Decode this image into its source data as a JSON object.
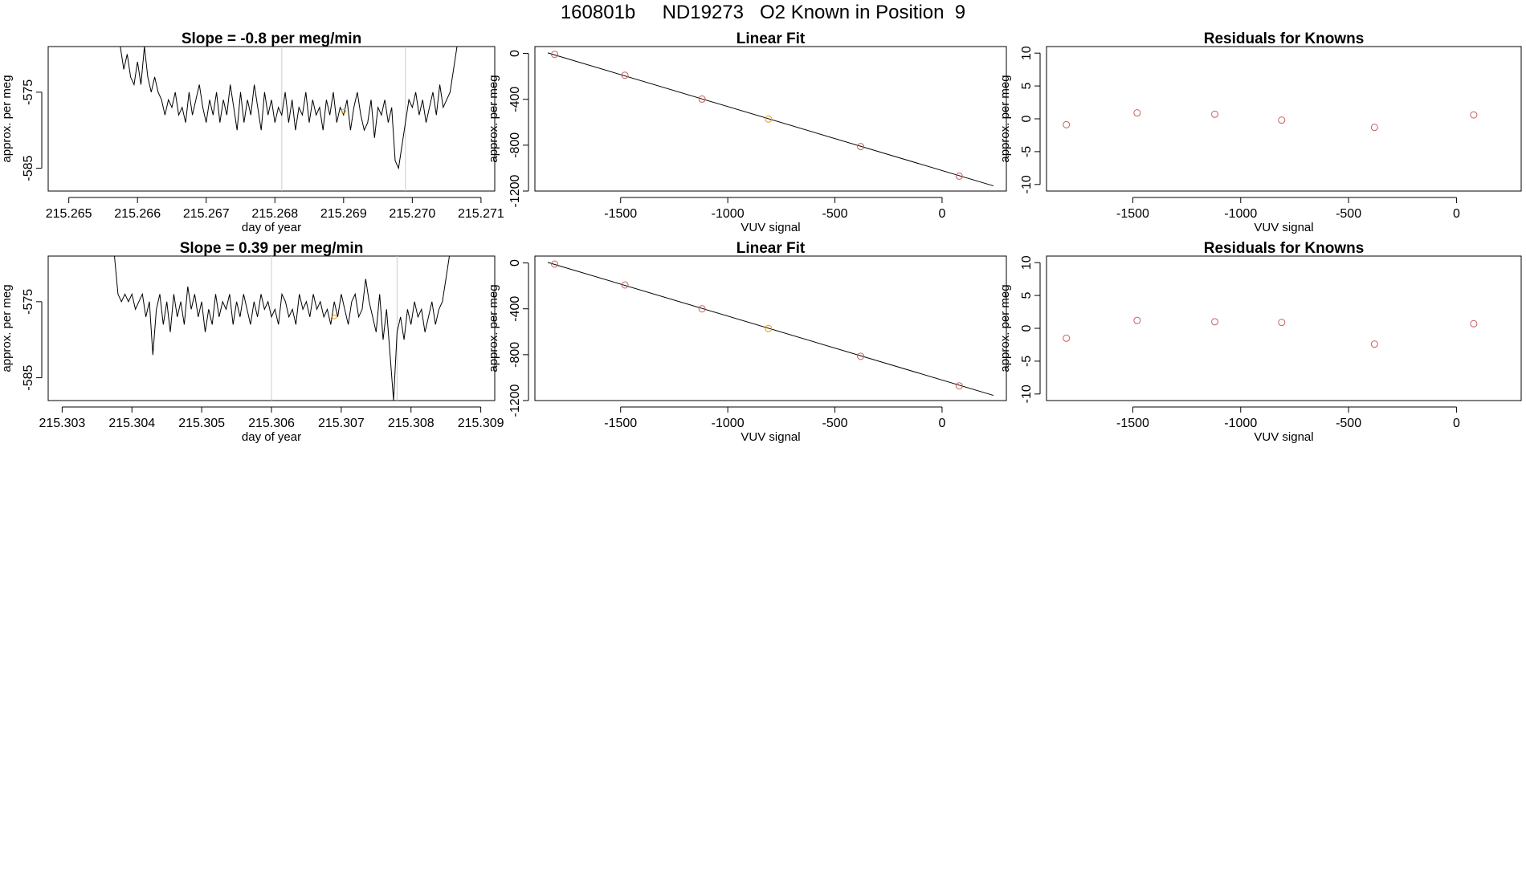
{
  "page_title": "160801b     ND19273   O2 Known in Position  9",
  "chart_data": [
    {
      "type": "line",
      "title": "Slope =  -0.8  per meg/min",
      "xlabel": "day of year",
      "ylabel": "approx. per meg",
      "xlim": [
        215.2647,
        215.2712
      ],
      "ylim": [
        -588,
        -569
      ],
      "xticks": [
        215.265,
        215.266,
        215.267,
        215.268,
        215.269,
        215.27,
        215.271
      ],
      "xtick_labels": [
        "215.265",
        "215.266",
        "215.267",
        "215.268",
        "215.269",
        "215.270",
        "215.271"
      ],
      "yticks": [
        -585,
        -575
      ],
      "ytick_labels": [
        "-585",
        "-575"
      ],
      "vlines": [
        215.2681,
        215.2699
      ],
      "highlight_point": {
        "x": 215.269,
        "y": -577.5
      },
      "line_color": "#000000",
      "vline_color": "#cccccc",
      "highlight_color": "#e69f00",
      "x": [
        215.26575,
        215.2658,
        215.26585,
        215.2659,
        215.26595,
        215.266,
        215.26605,
        215.2661,
        215.26615,
        215.2662,
        215.26625,
        215.2663,
        215.26635,
        215.2664,
        215.26645,
        215.2665,
        215.26655,
        215.2666,
        215.26665,
        215.2667,
        215.26675,
        215.2668,
        215.26685,
        215.2669,
        215.26695,
        215.267,
        215.26705,
        215.2671,
        215.26715,
        215.2672,
        215.26725,
        215.2673,
        215.26735,
        215.2674,
        215.26745,
        215.2675,
        215.26755,
        215.2676,
        215.26765,
        215.2677,
        215.26775,
        215.2678,
        215.26785,
        215.2679,
        215.26795,
        215.268,
        215.26805,
        215.2681,
        215.26815,
        215.2682,
        215.26825,
        215.2683,
        215.26835,
        215.2684,
        215.26845,
        215.2685,
        215.26855,
        215.2686,
        215.26865,
        215.2687,
        215.26875,
        215.2688,
        215.26885,
        215.2689,
        215.26895,
        215.269,
        215.26905,
        215.2691,
        215.26915,
        215.2692,
        215.26925,
        215.2693,
        215.26935,
        215.2694,
        215.26945,
        215.2695,
        215.26955,
        215.2696,
        215.26965,
        215.2697,
        215.26975,
        215.2698,
        215.26985,
        215.2699,
        215.26995,
        215.27,
        215.27005,
        215.2701,
        215.27015,
        215.2702,
        215.27025,
        215.2703,
        215.27035,
        215.2704,
        215.27045,
        215.2705,
        215.27055,
        215.2706,
        215.27065
      ],
      "y": [
        -569,
        -572,
        -570,
        -573,
        -574,
        -571,
        -574,
        -569,
        -573,
        -575,
        -573,
        -575,
        -576,
        -578,
        -576,
        -577,
        -575,
        -578,
        -577,
        -579,
        -575,
        -578,
        -576,
        -574,
        -577,
        -579,
        -576,
        -578,
        -575,
        -579,
        -576,
        -578,
        -574,
        -577,
        -580,
        -575,
        -579,
        -576,
        -578,
        -574,
        -577,
        -580,
        -575,
        -578,
        -576,
        -579,
        -577,
        -578,
        -575,
        -579,
        -576,
        -580,
        -577,
        -578,
        -575,
        -579,
        -576,
        -578,
        -577,
        -580,
        -576,
        -578,
        -575,
        -579,
        -577,
        -578,
        -576,
        -580,
        -577,
        -575,
        -578,
        -580,
        -579,
        -576,
        -581,
        -577,
        -578,
        -576,
        -579,
        -577,
        -584,
        -585,
        -582,
        -579,
        -576,
        -577,
        -575,
        -578,
        -576,
        -579,
        -577,
        -575,
        -578,
        -574,
        -577,
        -576,
        -575,
        -572,
        -569
      ],
      "series_y": "y"
    },
    {
      "type": "scatter",
      "title": "Linear Fit",
      "xlabel": "VUV signal",
      "ylabel": "approx. per meg",
      "xlim": [
        -1900,
        300
      ],
      "ylim": [
        -1200,
        60
      ],
      "xticks": [
        -1500,
        -1000,
        -500,
        0
      ],
      "xtick_labels": [
        "-1500",
        "-1000",
        "-500",
        "0"
      ],
      "yticks": [
        0,
        -400,
        -800,
        -1200
      ],
      "ytick_labels": [
        "0",
        "-400",
        "-800",
        "-1200"
      ],
      "x": [
        -1808,
        -1480,
        -1120,
        -810,
        -380,
        80
      ],
      "y": [
        -8,
        -190,
        -398,
        -572,
        -812,
        -1070
      ],
      "point_colors": [
        "#cd5c5c",
        "#cd5c5c",
        "#cd5c5c",
        "#e69f00",
        "#cd5c5c",
        "#cd5c5c"
      ],
      "fit_line": {
        "x": [
          -1840,
          240
        ],
        "y": [
          5,
          -1155
        ]
      }
    },
    {
      "type": "scatter",
      "title": "Residuals for Knowns",
      "xlabel": "VUV signal",
      "ylabel": "approx. per meg",
      "xlim": [
        -1900,
        300
      ],
      "ylim": [
        -11,
        11
      ],
      "xticks": [
        -1500,
        -1000,
        -500,
        0
      ],
      "xtick_labels": [
        "-1500",
        "-1000",
        "-500",
        "0"
      ],
      "yticks": [
        10,
        5,
        0,
        -5,
        -10
      ],
      "ytick_labels": [
        "10",
        "5",
        "0",
        "-5",
        "-10"
      ],
      "x": [
        -1808,
        -1480,
        -1120,
        -810,
        -380,
        80
      ],
      "y": [
        -0.9,
        0.9,
        0.7,
        -0.2,
        -1.3,
        0.6
      ],
      "point_colors": [
        "#cd5c5c",
        "#cd5c5c",
        "#cd5c5c",
        "#cd5c5c",
        "#cd5c5c",
        "#cd5c5c"
      ]
    },
    {
      "type": "line",
      "title": "Slope =  0.39  per meg/min",
      "xlabel": "day of year",
      "ylabel": "approx. per meg",
      "xlim": [
        215.3028,
        215.3092
      ],
      "ylim": [
        -588,
        -569
      ],
      "xticks": [
        215.303,
        215.304,
        215.305,
        215.306,
        215.307,
        215.308,
        215.309
      ],
      "xtick_labels": [
        "215.303",
        "215.304",
        "215.305",
        "215.306",
        "215.307",
        "215.308",
        "215.309"
      ],
      "yticks": [
        -585,
        -575
      ],
      "ytick_labels": [
        "-585",
        "-575"
      ],
      "vlines": [
        215.306,
        215.3078
      ],
      "highlight_point": {
        "x": 215.3069,
        "y": -577
      },
      "line_color": "#000000",
      "vline_color": "#cccccc",
      "highlight_color": "#e69f00",
      "x": [
        215.30375,
        215.3038,
        215.30385,
        215.3039,
        215.30395,
        215.304,
        215.30405,
        215.3041,
        215.30415,
        215.3042,
        215.30425,
        215.3043,
        215.30435,
        215.3044,
        215.30445,
        215.3045,
        215.30455,
        215.3046,
        215.30465,
        215.3047,
        215.30475,
        215.3048,
        215.30485,
        215.3049,
        215.30495,
        215.305,
        215.30505,
        215.3051,
        215.30515,
        215.3052,
        215.30525,
        215.3053,
        215.30535,
        215.3054,
        215.30545,
        215.3055,
        215.30555,
        215.3056,
        215.30565,
        215.3057,
        215.30575,
        215.3058,
        215.30585,
        215.3059,
        215.30595,
        215.306,
        215.30605,
        215.3061,
        215.30615,
        215.3062,
        215.30625,
        215.3063,
        215.30635,
        215.3064,
        215.30645,
        215.3065,
        215.30655,
        215.3066,
        215.30665,
        215.3067,
        215.30675,
        215.3068,
        215.30685,
        215.3069,
        215.30695,
        215.307,
        215.30705,
        215.3071,
        215.30715,
        215.3072,
        215.30725,
        215.3073,
        215.30735,
        215.3074,
        215.30745,
        215.3075,
        215.30755,
        215.3076,
        215.30765,
        215.3077,
        215.30775,
        215.3078,
        215.30785,
        215.3079,
        215.30795,
        215.308,
        215.30805,
        215.3081,
        215.30815,
        215.3082,
        215.30825,
        215.3083,
        215.30835,
        215.3084,
        215.30845,
        215.3085,
        215.30855
      ],
      "y": [
        -569,
        -574,
        -575,
        -574,
        -575,
        -574,
        -576,
        -575,
        -574,
        -577,
        -575,
        -582,
        -576,
        -574,
        -578,
        -575,
        -579,
        -574,
        -577,
        -575,
        -578,
        -573,
        -576,
        -574,
        -577,
        -575,
        -579,
        -576,
        -578,
        -574,
        -577,
        -575,
        -576,
        -574,
        -578,
        -575,
        -577,
        -574,
        -576,
        -578,
        -575,
        -577,
        -574,
        -576,
        -575,
        -577,
        -576,
        -578,
        -574,
        -575,
        -577,
        -576,
        -578,
        -574,
        -576,
        -575,
        -577,
        -574,
        -576,
        -575,
        -577,
        -576,
        -578,
        -575,
        -577,
        -574,
        -576,
        -578,
        -575,
        -574,
        -577,
        -576,
        -572,
        -575,
        -577,
        -579,
        -574,
        -580,
        -576,
        -582,
        -588,
        -579,
        -577,
        -580,
        -576,
        -578,
        -575,
        -577,
        -576,
        -579,
        -577,
        -575,
        -578,
        -576,
        -575,
        -572,
        -569
      ]
    },
    {
      "type": "scatter",
      "title": "Linear Fit",
      "xlabel": "VUV signal",
      "ylabel": "approx. per meg",
      "xlim": [
        -1900,
        300
      ],
      "ylim": [
        -1200,
        60
      ],
      "xticks": [
        -1500,
        -1000,
        -500,
        0
      ],
      "xtick_labels": [
        "-1500",
        "-1000",
        "-500",
        "0"
      ],
      "yticks": [
        0,
        -400,
        -800,
        -1200
      ],
      "ytick_labels": [
        "0",
        "-400",
        "-800",
        "-1200"
      ],
      "x": [
        -1808,
        -1480,
        -1120,
        -810,
        -380,
        80
      ],
      "y": [
        -10,
        -192,
        -400,
        -572,
        -814,
        -1072
      ],
      "point_colors": [
        "#cd5c5c",
        "#cd5c5c",
        "#cd5c5c",
        "#e69f00",
        "#cd5c5c",
        "#cd5c5c"
      ],
      "fit_line": {
        "x": [
          -1840,
          240
        ],
        "y": [
          5,
          -1155
        ]
      }
    },
    {
      "type": "scatter",
      "title": "Residuals for Knowns",
      "xlabel": "VUV signal",
      "ylabel": "approx. per meg",
      "xlim": [
        -1900,
        300
      ],
      "ylim": [
        -11,
        11
      ],
      "xticks": [
        -1500,
        -1000,
        -500,
        0
      ],
      "xtick_labels": [
        "-1500",
        "-1000",
        "-500",
        "0"
      ],
      "yticks": [
        10,
        5,
        0,
        -5,
        -10
      ],
      "ytick_labels": [
        "10",
        "5",
        "0",
        "-5",
        "-10"
      ],
      "x": [
        -1808,
        -1480,
        -1120,
        -810,
        -380,
        80
      ],
      "y": [
        -1.5,
        1.2,
        1.0,
        0.9,
        -2.4,
        0.7
      ],
      "point_colors": [
        "#cd5c5c",
        "#cd5c5c",
        "#cd5c5c",
        "#cd5c5c",
        "#cd5c5c",
        "#cd5c5c"
      ]
    }
  ]
}
